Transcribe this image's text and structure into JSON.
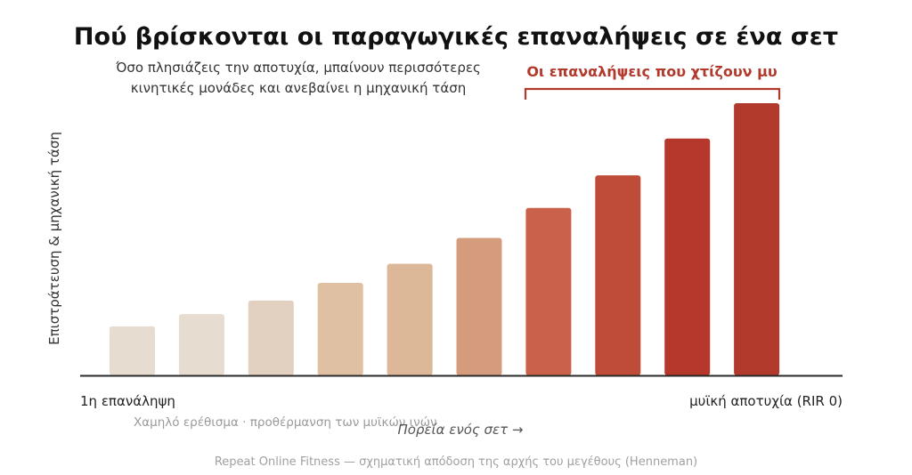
{
  "chart_data": {
    "type": "bar",
    "title": "Πού βρίσκονται οι παραγωγικές επαναλήψεις σε ένα σετ",
    "subtitle_lines": [
      "Όσο πλησιάζεις την αποτυχία, μπαίνουν περισσότερες",
      "κινητικές μονάδες και ανεβαίνει η μηχανική τάση"
    ],
    "ylabel": "Επιστράτευση & μηχανική τάση",
    "xlabel": "Πορεία ενός σετ →",
    "x_start_label": "1η επανάληψη",
    "x_end_label": "μυϊκή αποτυχία (RIR 0)",
    "low_zone_note": "Χαμηλό ερέθισμα · προθέρμανση των μυϊκών ινών",
    "bracket_label": "Οι επαναλήψεις που χτίζουν μυ",
    "bracket_range": [
      7,
      10
    ],
    "values": [
      18,
      22.5,
      27.5,
      34,
      41,
      50.5,
      61.5,
      73.5,
      87,
      100
    ],
    "ylim": [
      0,
      100
    ],
    "colors": [
      "#e6ddd0",
      "#e6ddd0",
      "#e2d1c0",
      "#dfc0a3",
      "#dcb899",
      "#d49c7d",
      "#c9614b",
      "#bf4c38",
      "#b6372b",
      "#b23a2d"
    ],
    "footer": "Repeat Online Fitness — σχηματική απόδοση της αρχής του μεγέθους (Henneman)"
  }
}
